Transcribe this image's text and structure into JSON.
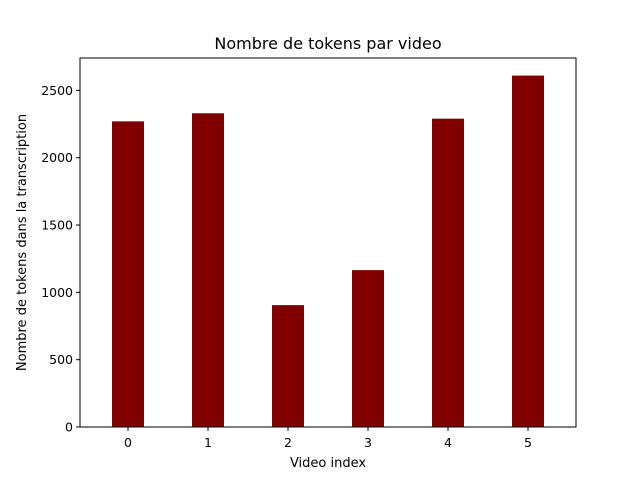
{
  "chart_data": {
    "type": "bar",
    "title": "Nombre de tokens par video",
    "xlabel": "Video index",
    "ylabel": "Nombre de tokens dans la transcription",
    "categories": [
      "0",
      "1",
      "2",
      "3",
      "4",
      "5"
    ],
    "values": [
      2270,
      2330,
      905,
      1165,
      2290,
      2610
    ],
    "ylim": [
      0,
      2740.5
    ],
    "yticks": [
      0,
      500,
      1000,
      1500,
      2000,
      2500
    ],
    "bar_color": "#800000",
    "grid": false,
    "legend": "none"
  }
}
